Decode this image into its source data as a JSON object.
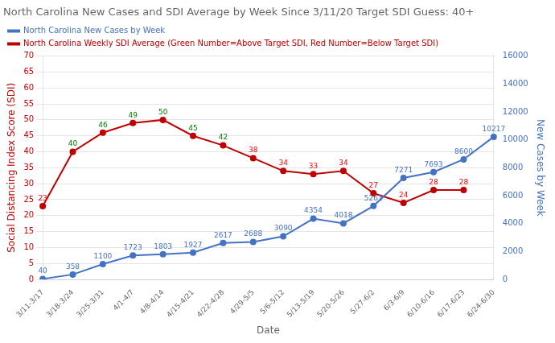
{
  "chart_data": {
    "type": "line",
    "title": "North Carolina New Cases and SDI Average by Week Since 3/11/20 Target SDI Guess: 40+",
    "xlabel": "Date",
    "ylabel": "Social Distancing Index Score (SDI)",
    "y2label": "New Cases by Week",
    "categories": [
      "3/11-3/17",
      "3/18-3/24",
      "3/25-3/31",
      "4/1-4/7",
      "4/8-4/14",
      "4/15-4/21",
      "4/22-4/28",
      "4/29-5/5",
      "5/6-5/12",
      "5/13-5/19",
      "5/20-5/26",
      "5/27-6/2",
      "6/3-6/9",
      "6/10-6/16",
      "6/17-6/23",
      "6/24-6/30"
    ],
    "series": [
      {
        "name": "North Carolina New Cases by Week",
        "color": "#4472c4",
        "axis": "y2",
        "marker": "circle",
        "values": [
          40,
          358,
          1100,
          1723,
          1803,
          1927,
          2617,
          2688,
          3090,
          4354,
          4018,
          5261,
          7271,
          7693,
          8600,
          10217
        ]
      },
      {
        "name": "North Carolina Weekly SDI Average (Green Number=Above Target SDI, Red Number=Below Target SDI)",
        "color": "#c00000",
        "marker": "circle",
        "colors": [
          "red",
          "green",
          "green",
          "green",
          "green",
          "green",
          "green",
          "red",
          "red",
          "red",
          "red",
          "red",
          "red",
          "red",
          "red",
          "red"
        ],
        "values": [
          23,
          40,
          46,
          49,
          50,
          45,
          42,
          38,
          34,
          33,
          34,
          27,
          24,
          28,
          28,
          null
        ]
      }
    ],
    "ylim": [
      0,
      70
    ],
    "yticks": [
      0,
      5,
      10,
      15,
      20,
      25,
      30,
      35,
      40,
      45,
      50,
      55,
      60,
      65,
      70
    ],
    "y2lim": [
      0,
      16000
    ],
    "y2ticks": [
      0,
      2000,
      4000,
      6000,
      8000,
      10000,
      12000,
      14000,
      16000
    ],
    "grid": true,
    "legend": "top",
    "data_labels": true
  }
}
